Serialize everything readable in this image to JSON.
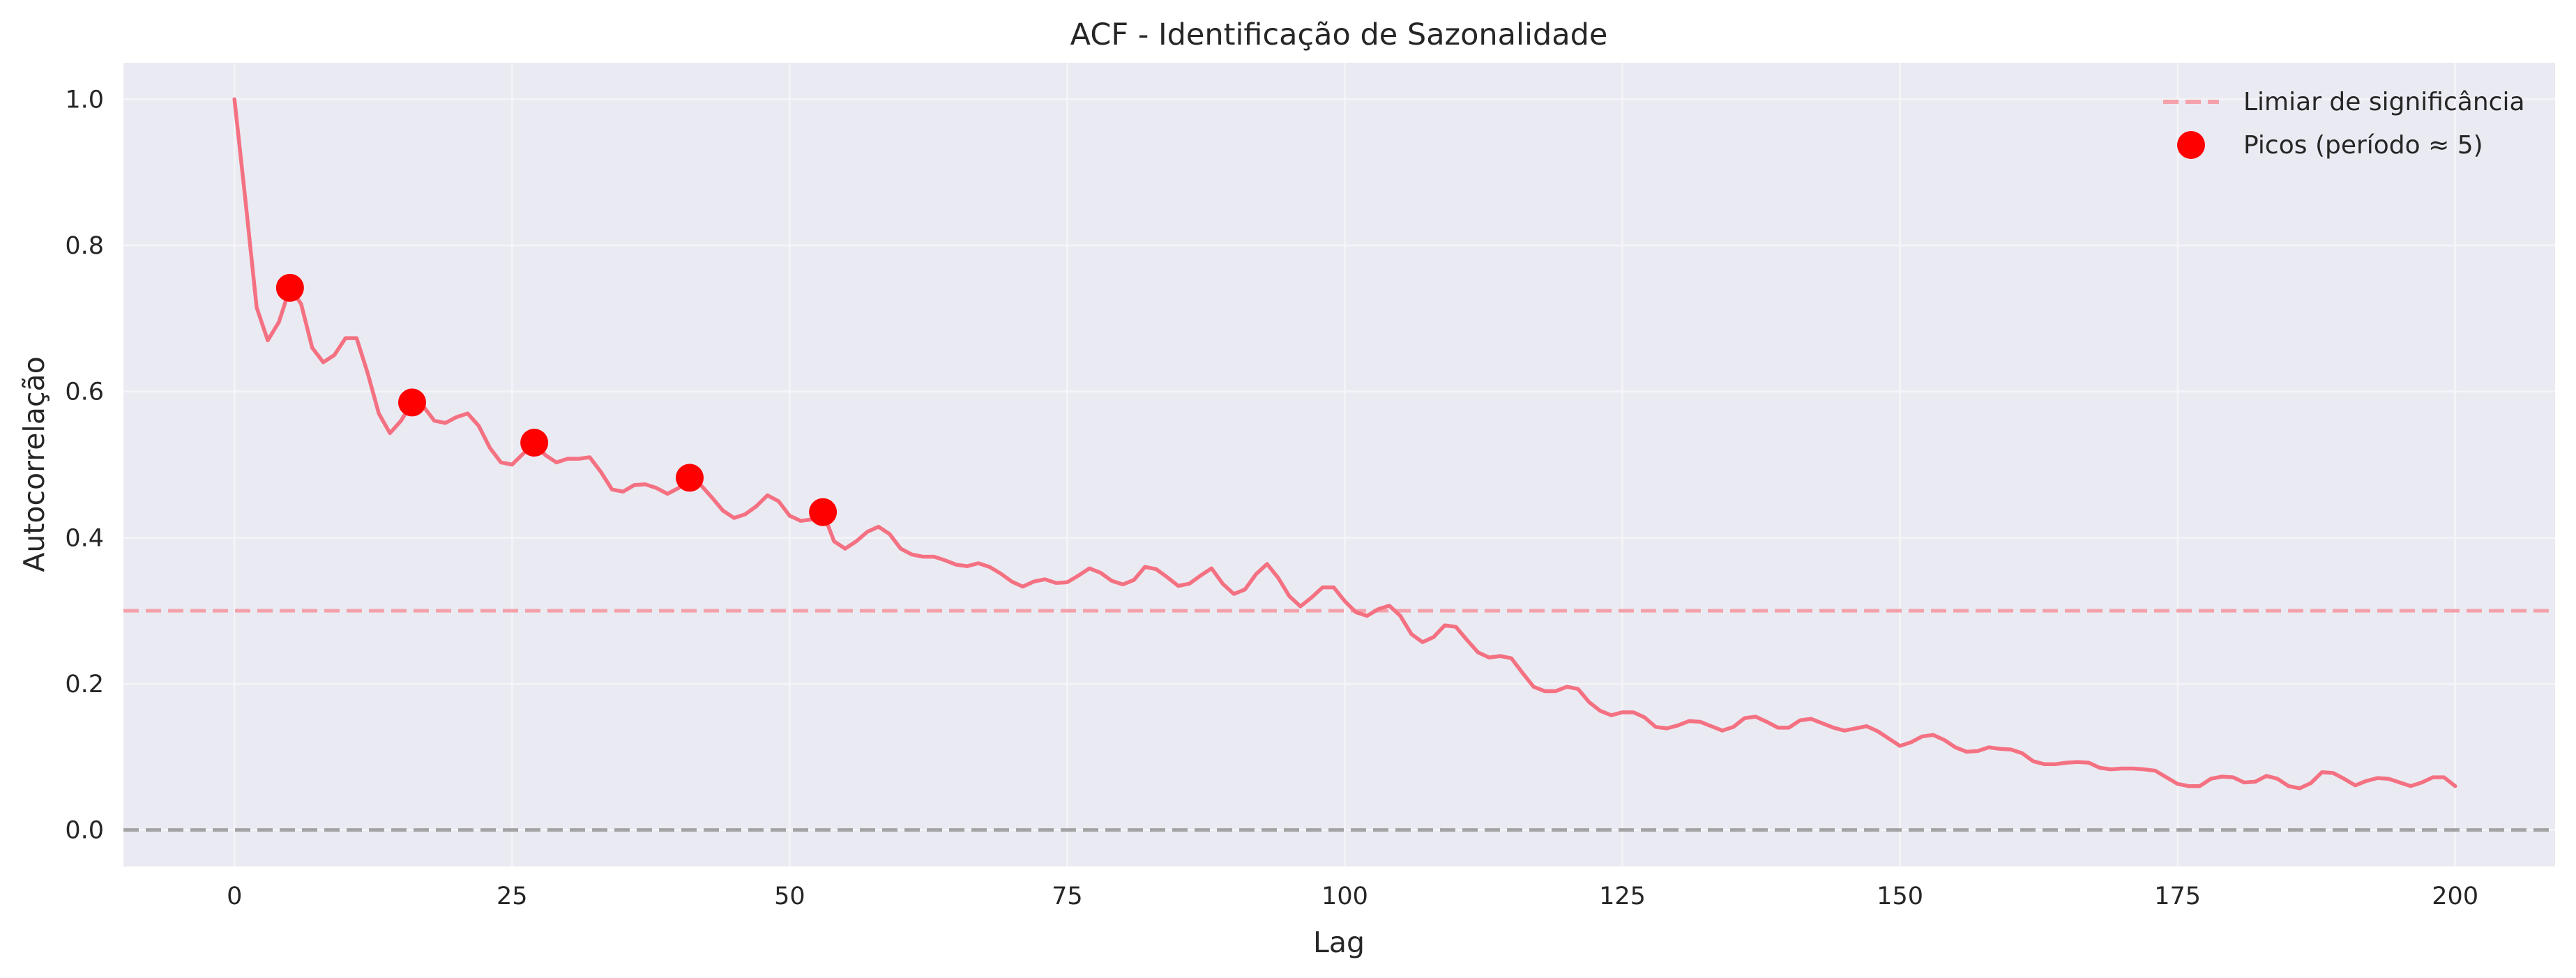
{
  "chart_data": {
    "type": "line",
    "title": "ACF - Identificação de Sazonalidade",
    "xlabel": "Lag",
    "ylabel": "Autocorrelação",
    "xlim": [
      -10,
      209
    ],
    "ylim": [
      -0.05,
      1.05
    ],
    "xticks": [
      0,
      25,
      50,
      75,
      100,
      125,
      150,
      175,
      200
    ],
    "xtick_labels": [
      "0",
      "25",
      "50",
      "75",
      "100",
      "125",
      "150",
      "175",
      "200"
    ],
    "yticks": [
      0.0,
      0.2,
      0.4,
      0.6,
      0.8,
      1.0
    ],
    "ytick_labels": [
      "0.0",
      "0.2",
      "0.4",
      "0.6",
      "0.8",
      "1.0"
    ],
    "grid": true,
    "legend_position": "top-right",
    "acf": {
      "color": "#f47182",
      "x_start": 0,
      "values": [
        1.0,
        0.86,
        0.715,
        0.67,
        0.695,
        0.742,
        0.72,
        0.66,
        0.64,
        0.65,
        0.673,
        0.673,
        0.625,
        0.57,
        0.543,
        0.56,
        0.585,
        0.58,
        0.56,
        0.557,
        0.565,
        0.57,
        0.553,
        0.523,
        0.503,
        0.5,
        0.515,
        0.53,
        0.513,
        0.503,
        0.508,
        0.508,
        0.51,
        0.49,
        0.466,
        0.463,
        0.472,
        0.473,
        0.468,
        0.46,
        0.468,
        0.482,
        0.472,
        0.455,
        0.437,
        0.427,
        0.432,
        0.443,
        0.458,
        0.45,
        0.43,
        0.423,
        0.425,
        0.435,
        0.395,
        0.385,
        0.395,
        0.408,
        0.415,
        0.405,
        0.385,
        0.377,
        0.374,
        0.374,
        0.369,
        0.363,
        0.361,
        0.365,
        0.36,
        0.351,
        0.34,
        0.333,
        0.34,
        0.343,
        0.338,
        0.339,
        0.348,
        0.358,
        0.352,
        0.341,
        0.336,
        0.342,
        0.36,
        0.357,
        0.346,
        0.334,
        0.337,
        0.348,
        0.358,
        0.337,
        0.323,
        0.329,
        0.35,
        0.364,
        0.345,
        0.32,
        0.306,
        0.318,
        0.332,
        0.332,
        0.313,
        0.298,
        0.293,
        0.302,
        0.307,
        0.293,
        0.268,
        0.257,
        0.264,
        0.28,
        0.278,
        0.26,
        0.243,
        0.236,
        0.238,
        0.235,
        0.215,
        0.196,
        0.19,
        0.19,
        0.196,
        0.193,
        0.175,
        0.163,
        0.157,
        0.161,
        0.161,
        0.154,
        0.141,
        0.139,
        0.143,
        0.149,
        0.148,
        0.142,
        0.136,
        0.141,
        0.153,
        0.155,
        0.148,
        0.14,
        0.14,
        0.15,
        0.152,
        0.146,
        0.14,
        0.136,
        0.139,
        0.142,
        0.135,
        0.125,
        0.115,
        0.12,
        0.128,
        0.13,
        0.123,
        0.113,
        0.107,
        0.108,
        0.113,
        0.111,
        0.11,
        0.105,
        0.094,
        0.09,
        0.09,
        0.092,
        0.093,
        0.092,
        0.085,
        0.083,
        0.084,
        0.084,
        0.083,
        0.081,
        0.072,
        0.063,
        0.06,
        0.06,
        0.07,
        0.073,
        0.072,
        0.065,
        0.066,
        0.074,
        0.07,
        0.06,
        0.057,
        0.064,
        0.079,
        0.078,
        0.07,
        0.061,
        0.067,
        0.071,
        0.07,
        0.065,
        0.06,
        0.065,
        0.072,
        0.072,
        0.06
      ]
    },
    "threshold": {
      "name": "Limiar de significância",
      "value": 0.3,
      "color": "#f4a1aa"
    },
    "zero_line": {
      "value": 0.0,
      "color": "#a3a3a3"
    },
    "peaks": {
      "name": "Picos (período ≈ 5)",
      "color": "#ff0000",
      "x": [
        5,
        16,
        27,
        41,
        53
      ],
      "y": [
        0.742,
        0.585,
        0.53,
        0.482,
        0.435
      ]
    },
    "colors": {
      "plot_background": "#eaeaf2",
      "grid": "#f5f5f8",
      "text": "#262626"
    }
  }
}
